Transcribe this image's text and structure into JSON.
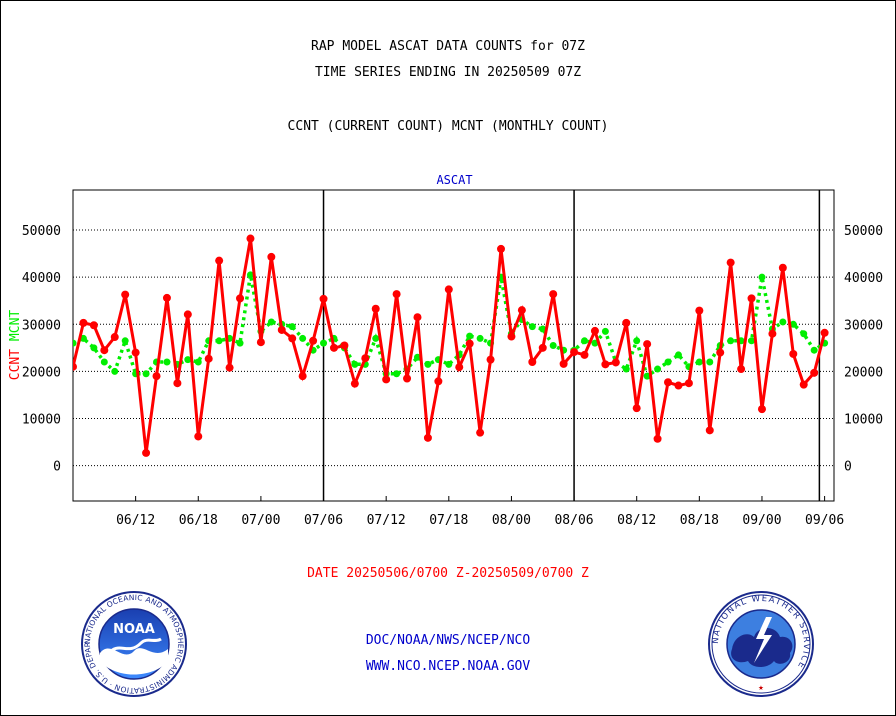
{
  "header": {
    "title": "RAP MODEL ASCAT DATA COUNTS for 07Z",
    "subtitle": "TIME SERIES ENDING IN 20250509 07Z",
    "legend_line": "CCNT (CURRENT COUNT) MCNT (MONTHLY COUNT)"
  },
  "footer": {
    "date_range": "DATE 20250506/0700 Z-20250509/0700 Z",
    "org": "DOC/NOAA/NWS/NCEP/NCO",
    "url": "WWW.NCO.NCEP.NOAA.GOV"
  },
  "logos": {
    "noaa": {
      "text": "NOAA",
      "ring_text": "NATIONAL OCEANIC AND ATMOSPHERIC ADMINISTRATION · U.S. DEPARTMENT OF COMMERCE"
    },
    "nws": {
      "ring_text": "NATIONAL WEATHER SERVICE"
    }
  },
  "colors": {
    "ccnt": "#ff0000",
    "mcnt": "#00ee00",
    "panel_label": "#0000cc",
    "footer_link": "#0000cc",
    "date_text": "#ff0000"
  },
  "chart_data": {
    "type": "line",
    "panel_label": "ASCAT",
    "ylabel_current": "CCNT",
    "ylabel_monthly": "MCNT",
    "yticks": [
      0,
      10000,
      20000,
      30000,
      40000,
      50000
    ],
    "ylim": [
      -7500,
      58500
    ],
    "x_tick_labels": [
      "06/12",
      "06/18",
      "07/00",
      "07/06",
      "07/12",
      "07/18",
      "08/00",
      "08/06",
      "08/12",
      "08/18",
      "09/00",
      "09/06"
    ],
    "x_tick_positions": [
      5,
      11,
      17,
      23,
      29,
      35,
      41,
      47,
      53,
      59,
      65,
      71
    ],
    "day_boundaries": [
      23,
      47,
      70.5
    ],
    "xlim": [
      -1,
      71.9
    ],
    "grid": true,
    "series": [
      {
        "name": "CCNT",
        "color": "#ff0000",
        "x": [
          -1,
          0,
          1,
          2,
          3,
          4,
          5,
          6,
          7,
          8,
          9,
          10,
          11,
          12,
          13,
          14,
          15,
          16,
          17,
          18,
          19,
          20,
          21,
          22,
          23,
          24,
          25,
          26,
          27,
          28,
          29,
          30,
          31,
          32,
          33,
          34,
          35,
          36,
          37,
          38,
          39,
          40,
          41,
          42,
          43,
          44,
          45,
          46,
          47,
          48,
          49,
          50,
          51,
          52,
          53,
          54,
          55,
          56,
          57,
          58,
          59,
          60,
          61,
          62,
          63,
          64,
          65,
          66,
          67,
          68,
          69,
          70,
          71
        ],
        "values": [
          21000,
          30300,
          29800,
          24500,
          27300,
          36300,
          24000,
          2700,
          19000,
          35600,
          17500,
          32100,
          6200,
          22700,
          43500,
          20800,
          35500,
          48200,
          26200,
          44300,
          28800,
          27000,
          19000,
          26500,
          35400,
          25000,
          25500,
          17400,
          22800,
          33300,
          18300,
          36400,
          18500,
          31500,
          5900,
          17900,
          37400,
          20900,
          25900,
          7000,
          22500,
          46000,
          27400,
          33000,
          22000,
          25000,
          36400,
          21600,
          24100,
          23500,
          28600,
          21500,
          21900,
          30300,
          12200,
          25800,
          5700,
          17700,
          17000,
          17500,
          32900,
          7500,
          24000,
          43100,
          20500,
          35500,
          12000,
          28000,
          42000,
          23700,
          17200,
          19700,
          28200
        ]
      },
      {
        "name": "MCNT",
        "color": "#00ee00",
        "x": [
          -1,
          0,
          1,
          2,
          3,
          4,
          5,
          6,
          7,
          8,
          9,
          10,
          11,
          12,
          13,
          14,
          15,
          16,
          17,
          18,
          19,
          20,
          21,
          22,
          23,
          24,
          25,
          26,
          27,
          28,
          29,
          30,
          31,
          32,
          33,
          34,
          35,
          36,
          37,
          38,
          39,
          40,
          41,
          42,
          43,
          44,
          45,
          46,
          47,
          48,
          49,
          50,
          51,
          52,
          53,
          54,
          55,
          56,
          57,
          58,
          59,
          60,
          61,
          62,
          63,
          64,
          65,
          66,
          67,
          68,
          69,
          70,
          71
        ],
        "values": [
          26000,
          27000,
          25000,
          22000,
          20000,
          26500,
          19500,
          19500,
          22000,
          22000,
          21500,
          22500,
          22000,
          26500,
          26500,
          27000,
          26000,
          40500,
          28500,
          30500,
          30000,
          29500,
          27000,
          24500,
          26000,
          27000,
          25000,
          21500,
          21500,
          27000,
          19500,
          19500,
          20500,
          23000,
          21500,
          22500,
          21500,
          23500,
          27500,
          27000,
          26000,
          40000,
          28000,
          31000,
          29500,
          29000,
          25500,
          24500,
          24500,
          26500,
          26000,
          28500,
          22000,
          20500,
          26500,
          19000,
          20500,
          22000,
          23500,
          21000,
          22000,
          22000,
          25500,
          26500,
          26500,
          26500,
          40000,
          29000,
          30500,
          30000,
          28000,
          24500,
          26000
        ]
      }
    ]
  }
}
